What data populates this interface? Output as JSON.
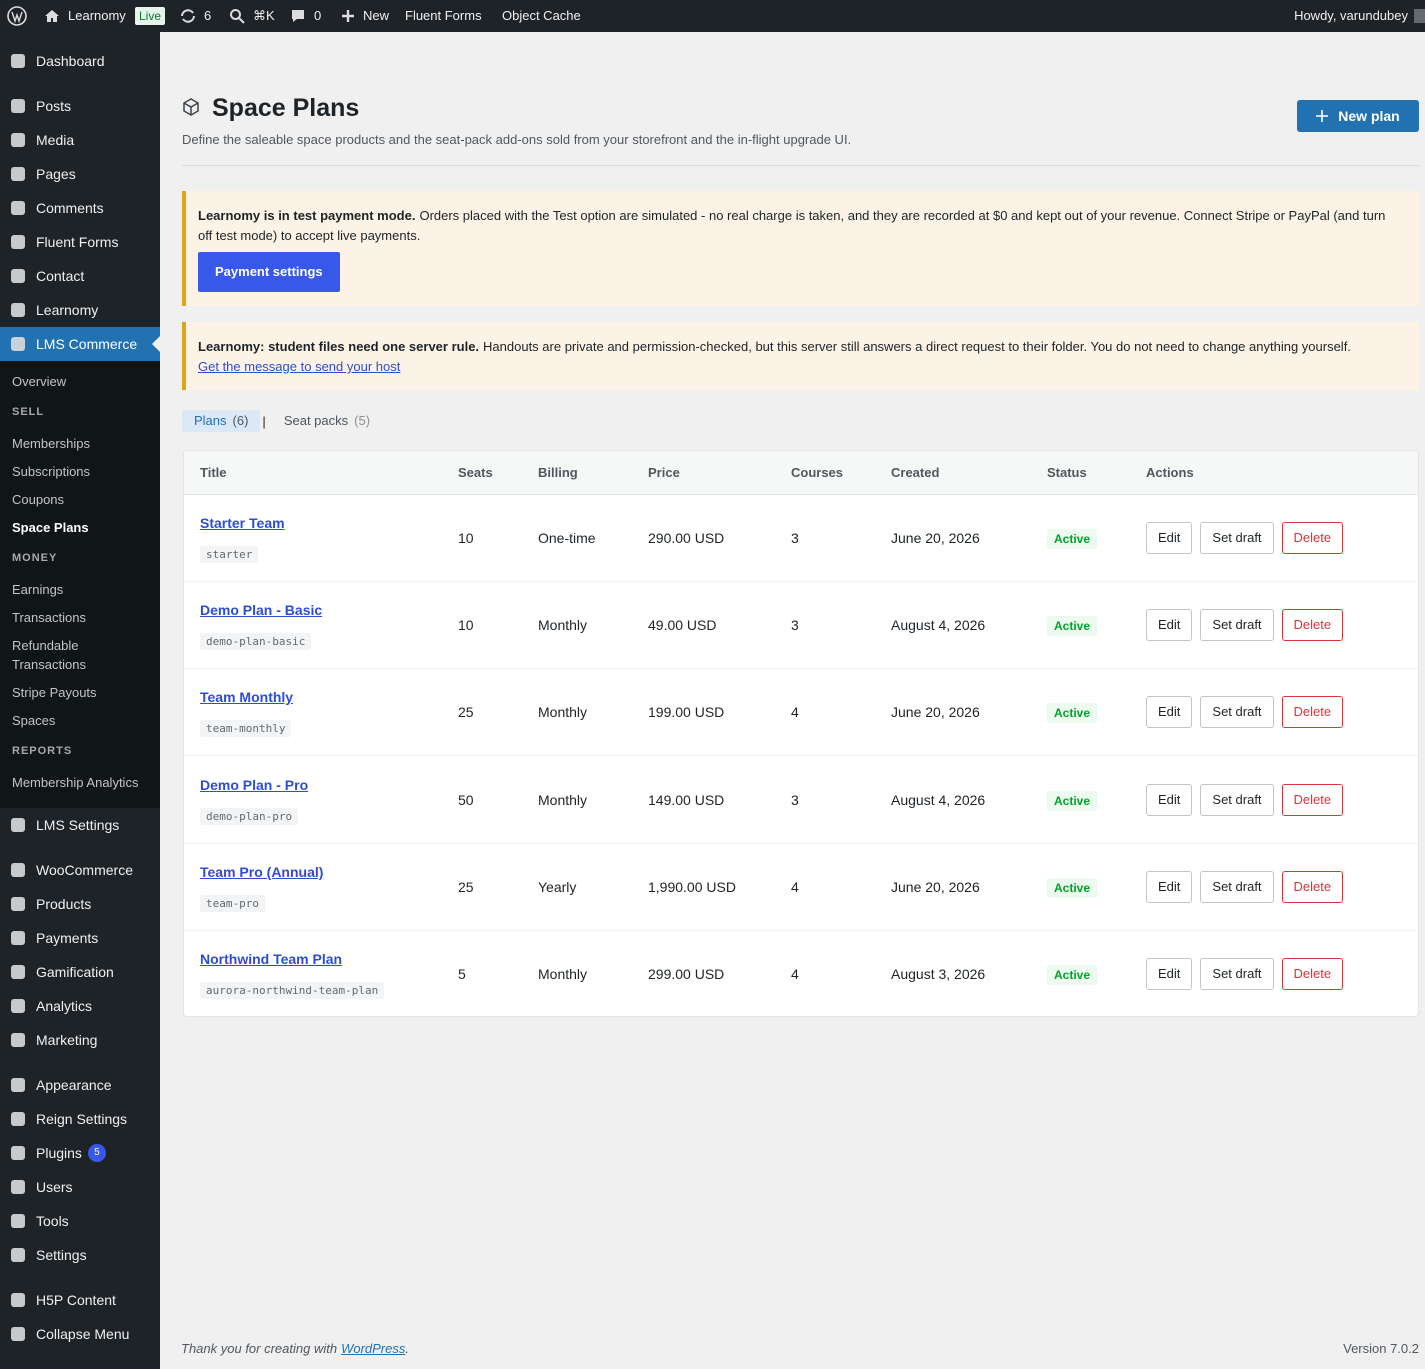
{
  "admin_bar": {
    "site": "Learnomy",
    "live": "Live",
    "updates": "6",
    "search": "⌘K",
    "comments": "0",
    "new": "New",
    "links": [
      "Fluent Forms",
      "Object Cache"
    ],
    "greeting": "Howdy, varundubey"
  },
  "menu": [
    [
      {
        "label": "Dashboard"
      }
    ],
    [
      {
        "label": "Posts"
      },
      {
        "label": "Media"
      },
      {
        "label": "Pages"
      },
      {
        "label": "Comments"
      },
      {
        "label": "Fluent Forms"
      },
      {
        "label": "Contact"
      },
      {
        "label": "Learnomy"
      },
      {
        "label": "LMS Commerce",
        "current": true,
        "submenu": [
          {
            "items": [
              {
                "label": "Overview"
              }
            ]
          },
          {
            "heading": "SELL",
            "items": [
              {
                "label": "Memberships"
              },
              {
                "label": "Subscriptions"
              },
              {
                "label": "Coupons"
              },
              {
                "label": "Space Plans",
                "current": true
              }
            ]
          },
          {
            "heading": "MONEY",
            "items": [
              {
                "label": "Earnings"
              },
              {
                "label": "Transactions"
              },
              {
                "label": "Refundable Transactions"
              },
              {
                "label": "Stripe Payouts"
              },
              {
                "label": "Spaces"
              }
            ]
          },
          {
            "heading": "REPORTS",
            "items": [
              {
                "label": "Membership Analytics"
              }
            ]
          }
        ]
      },
      {
        "label": "LMS Settings"
      }
    ],
    [
      {
        "label": "WooCommerce"
      },
      {
        "label": "Products"
      },
      {
        "label": "Payments"
      },
      {
        "label": "Gamification"
      },
      {
        "label": "Analytics"
      },
      {
        "label": "Marketing"
      }
    ],
    [
      {
        "label": "Appearance"
      },
      {
        "label": "Reign Settings"
      },
      {
        "label": "Plugins",
        "badge": "5"
      },
      {
        "label": "Users"
      },
      {
        "label": "Tools"
      },
      {
        "label": "Settings"
      }
    ],
    [
      {
        "label": "H5P Content"
      },
      {
        "label": "Collapse Menu"
      }
    ]
  ],
  "page": {
    "title": "Space Plans",
    "description": "Define the saleable space products and the seat-pack add-ons sold from your storefront and the in-flight upgrade UI.",
    "new_button": "New plan"
  },
  "notices": [
    {
      "strong": "Learnomy is in test payment mode.",
      "text": "Orders placed with the Test option are simulated - no real charge is taken, and they are recorded at $0 and kept out of your revenue. Connect Stripe or PayPal (and turn off test mode) to accept live payments.",
      "button": "Payment settings"
    },
    {
      "strong": "Learnomy: student files need one server rule.",
      "text": "Handouts are private and permission-checked, but this server still answers a direct request to their folder. You do not need to change anything yourself.",
      "link": "Get the message to send your host"
    }
  ],
  "tabs": {
    "items": [
      {
        "label": "Plans",
        "count": "(6)",
        "current": true
      },
      {
        "label": "Seat packs",
        "count": "(5)"
      }
    ],
    "separator": "|"
  },
  "table": {
    "columns": [
      "Title",
      "Seats",
      "Billing",
      "Price",
      "Courses",
      "Created",
      "Status",
      "Actions"
    ],
    "rows": [
      {
        "title": "Starter Team",
        "slug": "starter",
        "seats": 10,
        "billing": "One-time",
        "price": "290.00 USD",
        "courses": 3,
        "created": "June 20, 2026",
        "status": "Active"
      },
      {
        "title": "Demo Plan - Basic",
        "slug": "demo-plan-basic",
        "seats": 10,
        "billing": "Monthly",
        "price": "49.00 USD",
        "courses": 3,
        "created": "August 4, 2026",
        "status": "Active"
      },
      {
        "title": "Team Monthly",
        "slug": "team-monthly",
        "seats": 25,
        "billing": "Monthly",
        "price": "199.00 USD",
        "courses": 4,
        "created": "June 20, 2026",
        "status": "Active"
      },
      {
        "title": "Demo Plan - Pro",
        "slug": "demo-plan-pro",
        "seats": 50,
        "billing": "Monthly",
        "price": "149.00 USD",
        "courses": 3,
        "created": "August 4, 2026",
        "status": "Active"
      },
      {
        "title": "Team Pro (Annual)",
        "slug": "team-pro",
        "seats": 25,
        "billing": "Yearly",
        "price": "1,990.00 USD",
        "courses": 4,
        "created": "June 20, 2026",
        "status": "Active"
      },
      {
        "title": "Northwind Team Plan",
        "slug": "aurora-northwind-team-plan",
        "seats": 5,
        "billing": "Monthly",
        "price": "299.00 USD",
        "courses": 4,
        "created": "August 3, 2026",
        "status": "Active"
      }
    ],
    "actions": [
      "Edit",
      "Set draft",
      "Delete"
    ]
  },
  "footer": {
    "text": "Thank you for creating with",
    "link": "WordPress",
    "end": ".",
    "version": "Version 7.0.2"
  }
}
